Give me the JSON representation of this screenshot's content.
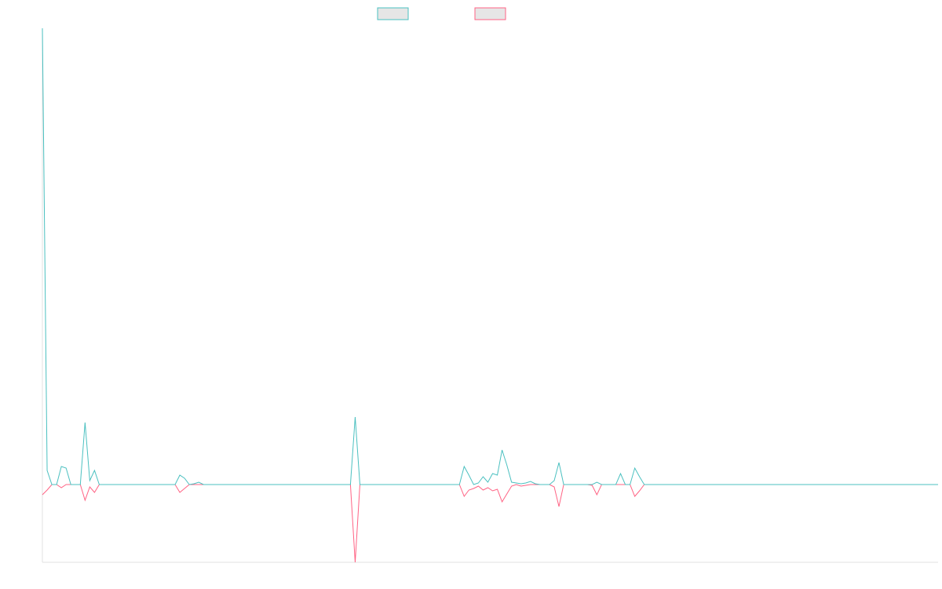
{
  "chart_data": {
    "type": "line",
    "categories": [
      null,
      null,
      null,
      null,
      null,
      null,
      null,
      null,
      null,
      null,
      null,
      null,
      null,
      null,
      null,
      null,
      null,
      null,
      null,
      null,
      null,
      null,
      null,
      null,
      null,
      null,
      null,
      null,
      null,
      null,
      null,
      null,
      null,
      null,
      null,
      null,
      null,
      null,
      null,
      null,
      null,
      null,
      null,
      null,
      null,
      null,
      null,
      null,
      null,
      null,
      null,
      null,
      null,
      null,
      null,
      null,
      null,
      null,
      null,
      null,
      null,
      null,
      null,
      null,
      null,
      null,
      null,
      null,
      null,
      null,
      null,
      null,
      null,
      null,
      null,
      null,
      null,
      null,
      null,
      null,
      null,
      null,
      null,
      null,
      null,
      null,
      null,
      null,
      null,
      null,
      null,
      null,
      null,
      null,
      null,
      null,
      null,
      null,
      null,
      null,
      null,
      null,
      null,
      null,
      null,
      null,
      null,
      null,
      null,
      null,
      null,
      null,
      null,
      null,
      null,
      null,
      null,
      null,
      null,
      null,
      null,
      null,
      null,
      null,
      null,
      null,
      null,
      null,
      null,
      null,
      null,
      null,
      null,
      null,
      null,
      null,
      null,
      null,
      null,
      null,
      null,
      null,
      null,
      null,
      null,
      null,
      null,
      null,
      null,
      null,
      null,
      null,
      null,
      null,
      null,
      null,
      null,
      null,
      null,
      null,
      null,
      null,
      null,
      null,
      null,
      null,
      null,
      null,
      null,
      null,
      null,
      null,
      null,
      null,
      null,
      null,
      null,
      null,
      null,
      null,
      null,
      null,
      null,
      null,
      null,
      null,
      null,
      null,
      null,
      null
    ],
    "series": [
      {
        "color": "#4bc0c0",
        "values": [
          581,
          18,
          0,
          0,
          23,
          21,
          0,
          0,
          0,
          79,
          5,
          18,
          0,
          0,
          0,
          0,
          0,
          0,
          0,
          0,
          0,
          0,
          0,
          0,
          0,
          0,
          0,
          0,
          0,
          12,
          8,
          0,
          1,
          3,
          0,
          0,
          0,
          0,
          0,
          0,
          0,
          0,
          0,
          0,
          0,
          0,
          0,
          0,
          0,
          0,
          0,
          0,
          0,
          0,
          0,
          0,
          0,
          0,
          0,
          0,
          0,
          0,
          0,
          0,
          0,
          0,
          86,
          0,
          0,
          0,
          0,
          0,
          0,
          0,
          0,
          0,
          0,
          0,
          0,
          0,
          0,
          0,
          0,
          0,
          0,
          0,
          0,
          0,
          0,
          23,
          12,
          0,
          2,
          10,
          3,
          14,
          12,
          44,
          25,
          3,
          2,
          1,
          2,
          4,
          1,
          0,
          0,
          0,
          5,
          28,
          0,
          0,
          0,
          0,
          0,
          0,
          0,
          3,
          0,
          0,
          0,
          0,
          14,
          0,
          0,
          21,
          10,
          0,
          0,
          0,
          0,
          0,
          0,
          0,
          0,
          0,
          0,
          0,
          0,
          0,
          0,
          0,
          0,
          0,
          0,
          0,
          0,
          0,
          0,
          0,
          0,
          0,
          0,
          0,
          0,
          0,
          0,
          0,
          0,
          0,
          0,
          0,
          0,
          0,
          0,
          0,
          0,
          0,
          0,
          0,
          0,
          0,
          0,
          0,
          0,
          0,
          0,
          0,
          0,
          0,
          0,
          0,
          0,
          0,
          0,
          0,
          0,
          0,
          0,
          0
        ]
      },
      {
        "color": "#ff6384",
        "values": [
          -13,
          -7,
          0,
          0,
          -4,
          0,
          0,
          0,
          0,
          -20,
          -3,
          -10,
          0,
          0,
          0,
          0,
          0,
          0,
          0,
          0,
          0,
          0,
          0,
          0,
          0,
          0,
          0,
          0,
          0,
          -10,
          -5,
          0,
          0,
          0,
          0,
          0,
          0,
          0,
          0,
          0,
          0,
          0,
          0,
          0,
          0,
          0,
          0,
          0,
          0,
          0,
          0,
          0,
          0,
          0,
          0,
          0,
          0,
          0,
          0,
          0,
          0,
          0,
          0,
          0,
          0,
          0,
          -99,
          0,
          0,
          0,
          0,
          0,
          0,
          0,
          0,
          0,
          0,
          0,
          0,
          0,
          0,
          0,
          0,
          0,
          0,
          0,
          0,
          0,
          0,
          -15,
          -7,
          -5,
          -2,
          -7,
          -4,
          -8,
          -6,
          -22,
          -12,
          -2,
          0,
          -2,
          -1,
          0,
          0,
          0,
          0,
          0,
          -3,
          -28,
          0,
          0,
          0,
          0,
          0,
          0,
          -1,
          -13,
          0,
          0,
          0,
          0,
          0,
          0,
          0,
          -15,
          -8,
          0,
          0,
          0,
          0,
          0,
          0,
          0,
          0,
          0,
          0,
          0,
          0,
          0,
          0,
          0,
          0,
          0,
          0,
          0,
          0,
          0,
          0,
          0,
          0,
          0,
          0,
          0,
          0,
          0,
          0,
          0,
          0,
          0,
          0,
          0,
          0,
          0,
          0,
          0,
          0,
          0,
          0,
          0,
          0,
          0,
          0,
          0,
          0,
          0,
          0,
          0,
          0,
          0,
          0,
          0,
          0,
          0,
          0,
          0,
          0,
          0,
          0,
          0
        ]
      }
    ],
    "ylim": [
      -99,
      581
    ]
  }
}
